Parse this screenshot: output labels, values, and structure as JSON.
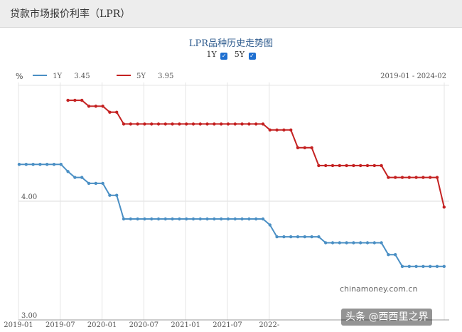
{
  "header": {
    "title": "贷款市场报价利率（LPR）"
  },
  "chart_header": {
    "title": "LPR品种历史走势图",
    "toggles": [
      {
        "label": "1Y",
        "checked": true
      },
      {
        "label": "5Y",
        "checked": true
      }
    ],
    "checkmark": "✓"
  },
  "legend": {
    "unit": "%",
    "items": [
      {
        "name": "1Y",
        "value": "3.45",
        "color": "#4a8fc4"
      },
      {
        "name": "5Y",
        "value": "3.95",
        "color": "#c42121"
      }
    ],
    "date_range": "2019-01 - 2024-02"
  },
  "chart_data": {
    "type": "line",
    "xlabel": "",
    "ylabel": "%",
    "ylim": [
      3.0,
      5.0
    ],
    "x_ticks": [
      "2019-01",
      "2019-07",
      "2020-01",
      "2020-07",
      "2021-01",
      "2021-07",
      "2022-"
    ],
    "y_ticks": [
      {
        "value": 4.0,
        "label": "4.00"
      },
      {
        "value": 3.0,
        "label": "3.00"
      }
    ],
    "grid": true,
    "series": [
      {
        "name": "1Y",
        "color": "#4a8fc4",
        "values": [
          4.31,
          4.31,
          4.31,
          4.31,
          4.31,
          4.31,
          4.31,
          4.25,
          4.2,
          4.2,
          4.15,
          4.15,
          4.15,
          4.05,
          4.05,
          3.85,
          3.85,
          3.85,
          3.85,
          3.85,
          3.85,
          3.85,
          3.85,
          3.85,
          3.85,
          3.85,
          3.85,
          3.85,
          3.85,
          3.85,
          3.85,
          3.85,
          3.85,
          3.85,
          3.85,
          3.85,
          3.8,
          3.7,
          3.7,
          3.7,
          3.7,
          3.7,
          3.7,
          3.7,
          3.65,
          3.65,
          3.65,
          3.65,
          3.65,
          3.65,
          3.65,
          3.65,
          3.65,
          3.55,
          3.55,
          3.45,
          3.45,
          3.45,
          3.45,
          3.45,
          3.45,
          3.45
        ]
      },
      {
        "name": "5Y",
        "color": "#c42121",
        "values": [
          null,
          null,
          null,
          null,
          null,
          null,
          null,
          4.85,
          4.85,
          4.85,
          4.8,
          4.8,
          4.8,
          4.75,
          4.75,
          4.65,
          4.65,
          4.65,
          4.65,
          4.65,
          4.65,
          4.65,
          4.65,
          4.65,
          4.65,
          4.65,
          4.65,
          4.65,
          4.65,
          4.65,
          4.65,
          4.65,
          4.65,
          4.65,
          4.65,
          4.65,
          4.6,
          4.6,
          4.6,
          4.6,
          4.45,
          4.45,
          4.45,
          4.3,
          4.3,
          4.3,
          4.3,
          4.3,
          4.3,
          4.3,
          4.3,
          4.3,
          4.3,
          4.2,
          4.2,
          4.2,
          4.2,
          4.2,
          4.2,
          4.2,
          4.2,
          3.95
        ]
      }
    ]
  },
  "watermarks": {
    "site": "chinamoney.com.cn",
    "brand": "头条 @西西里之界"
  }
}
